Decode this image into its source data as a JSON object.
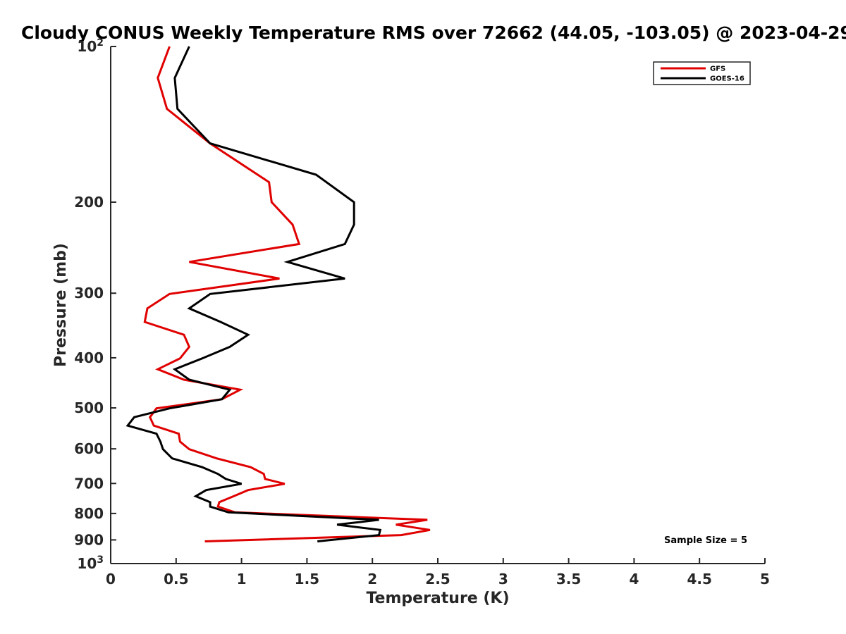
{
  "chart_data": {
    "type": "line",
    "title": "Cloudy CONUS Weekly Temperature RMS over 72662 (44.05, -103.05) @ 2023-04-29",
    "xlabel": "Temperature (K)",
    "ylabel": "Pressure (mb)",
    "xlim": [
      0,
      5
    ],
    "ylim": [
      100,
      1000
    ],
    "y_scale": "log",
    "y_reversed": true,
    "x_ticks": [
      "0",
      "0.5",
      "1",
      "1.5",
      "2",
      "2.5",
      "3",
      "3.5",
      "4",
      "4.5",
      "5"
    ],
    "y_ticks": [
      {
        "value": 100,
        "base": "10",
        "exp": "2"
      },
      {
        "value": 200,
        "label": "200"
      },
      {
        "value": 300,
        "label": "300"
      },
      {
        "value": 400,
        "label": "400"
      },
      {
        "value": 500,
        "label": "500"
      },
      {
        "value": 600,
        "label": "600"
      },
      {
        "value": 700,
        "label": "700"
      },
      {
        "value": 800,
        "label": "800"
      },
      {
        "value": 900,
        "label": "900"
      },
      {
        "value": 1000,
        "base": "10",
        "exp": "3"
      }
    ],
    "grid": false,
    "legend_position": "top-right",
    "annotation": "Sample Size = 5",
    "series": [
      {
        "name": "GFS",
        "color": "#e00000",
        "points": [
          [
            0.45,
            100
          ],
          [
            0.36,
            115
          ],
          [
            0.43,
            132
          ],
          [
            0.76,
            154
          ],
          [
            1.21,
            183
          ],
          [
            1.23,
            200
          ],
          [
            1.39,
            221
          ],
          [
            1.44,
            241
          ],
          [
            0.6,
            261
          ],
          [
            1.29,
            281
          ],
          [
            0.45,
            301
          ],
          [
            0.28,
            321
          ],
          [
            0.26,
            341
          ],
          [
            0.56,
            361
          ],
          [
            0.6,
            381
          ],
          [
            0.53,
            401
          ],
          [
            0.36,
            421
          ],
          [
            0.56,
            441
          ],
          [
            0.99,
            461
          ],
          [
            0.85,
            481
          ],
          [
            0.35,
            501
          ],
          [
            0.3,
            521
          ],
          [
            0.33,
            541
          ],
          [
            0.52,
            561
          ],
          [
            0.53,
            581
          ],
          [
            0.6,
            601
          ],
          [
            0.81,
            626
          ],
          [
            1.07,
            651
          ],
          [
            1.17,
            671
          ],
          [
            1.18,
            686
          ],
          [
            1.33,
            701
          ],
          [
            1.05,
            721
          ],
          [
            0.94,
            741
          ],
          [
            0.83,
            761
          ],
          [
            0.82,
            776
          ],
          [
            0.95,
            796
          ],
          [
            2.42,
            823
          ],
          [
            2.18,
            841
          ],
          [
            2.44,
            861
          ],
          [
            2.22,
            881
          ],
          [
            0.72,
            906
          ]
        ]
      },
      {
        "name": "GOES-16",
        "color": "#000000",
        "points": [
          [
            0.6,
            100
          ],
          [
            0.49,
            115
          ],
          [
            0.51,
            132
          ],
          [
            0.76,
            154
          ],
          [
            1.57,
            177
          ],
          [
            1.86,
            200
          ],
          [
            1.86,
            221
          ],
          [
            1.79,
            241
          ],
          [
            1.35,
            261
          ],
          [
            1.79,
            281
          ],
          [
            0.76,
            301
          ],
          [
            0.6,
            321
          ],
          [
            0.84,
            341
          ],
          [
            1.05,
            361
          ],
          [
            0.91,
            381
          ],
          [
            0.7,
            401
          ],
          [
            0.49,
            421
          ],
          [
            0.6,
            441
          ],
          [
            0.91,
            461
          ],
          [
            0.85,
            481
          ],
          [
            0.45,
            501
          ],
          [
            0.18,
            521
          ],
          [
            0.13,
            541
          ],
          [
            0.35,
            561
          ],
          [
            0.38,
            581
          ],
          [
            0.4,
            601
          ],
          [
            0.47,
            626
          ],
          [
            0.7,
            651
          ],
          [
            0.82,
            671
          ],
          [
            0.88,
            686
          ],
          [
            1.0,
            701
          ],
          [
            0.73,
            721
          ],
          [
            0.65,
            741
          ],
          [
            0.76,
            761
          ],
          [
            0.76,
            776
          ],
          [
            0.9,
            796
          ],
          [
            2.05,
            823
          ],
          [
            1.73,
            841
          ],
          [
            2.06,
            861
          ],
          [
            2.05,
            881
          ],
          [
            1.58,
            906
          ]
        ]
      }
    ]
  }
}
